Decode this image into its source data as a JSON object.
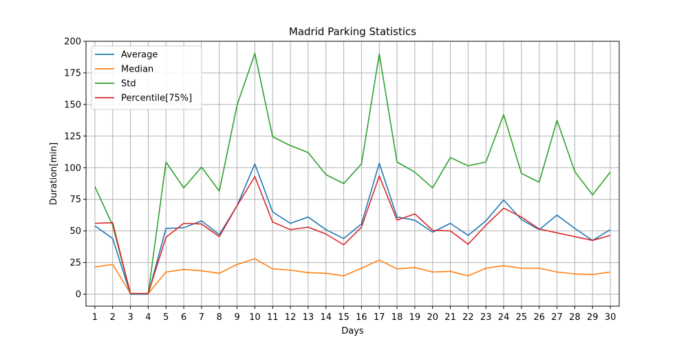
{
  "chart_data": {
    "type": "line",
    "title": "Madrid Parking Statistics",
    "xlabel": "Days",
    "ylabel": "Duration[min]",
    "x": [
      1,
      2,
      3,
      4,
      5,
      6,
      7,
      8,
      9,
      10,
      11,
      12,
      13,
      14,
      15,
      16,
      17,
      18,
      19,
      20,
      21,
      22,
      23,
      24,
      25,
      26,
      27,
      28,
      29,
      30
    ],
    "xlim": [
      0.5,
      30.5
    ],
    "ylim": [
      -9.5,
      200
    ],
    "yticks": [
      0,
      25,
      50,
      75,
      100,
      125,
      150,
      175,
      200
    ],
    "grid": true,
    "legend_position": "top-left",
    "series": [
      {
        "name": "Average",
        "color": "#1f77b4",
        "values": [
          54,
          44,
          0,
          0,
          52,
          52.5,
          58,
          47,
          70,
          103,
          65,
          56,
          61,
          51,
          44,
          55.5,
          103.5,
          61,
          58.5,
          49,
          56,
          46.5,
          58,
          74.5,
          59,
          51,
          62.5,
          52,
          42.5,
          51
        ]
      },
      {
        "name": "Median",
        "color": "#ff7f0e",
        "values": [
          21.5,
          23.5,
          0.5,
          0.5,
          17.5,
          19.5,
          18.5,
          16.5,
          23.5,
          28,
          20,
          19,
          17,
          16.5,
          14.5,
          20.5,
          27,
          20,
          21,
          17.5,
          18,
          14.5,
          20.5,
          22.5,
          20.5,
          20.5,
          17.5,
          16,
          15.5,
          17.5
        ]
      },
      {
        "name": "Std",
        "color": "#2ca02c",
        "values": [
          85,
          54.5,
          0.5,
          0.5,
          104.5,
          84,
          100.5,
          81.5,
          149.5,
          190.5,
          124.5,
          117.5,
          112,
          94.5,
          87.5,
          103,
          190,
          104.5,
          96.5,
          84,
          108,
          101.5,
          104.5,
          142,
          95.5,
          88.5,
          137.5,
          97,
          78.5,
          96.5
        ]
      },
      {
        "name": "Percentile[75%]",
        "color": "#d62728",
        "values": [
          56,
          56.5,
          0.5,
          0.5,
          45,
          56,
          55.5,
          45.5,
          70,
          93,
          57,
          51,
          53,
          47.5,
          39,
          53,
          93.5,
          58.5,
          63.5,
          50.5,
          50,
          39.5,
          54.5,
          68,
          61,
          51.5,
          48.5,
          45.5,
          42.5,
          46.5
        ]
      }
    ]
  }
}
